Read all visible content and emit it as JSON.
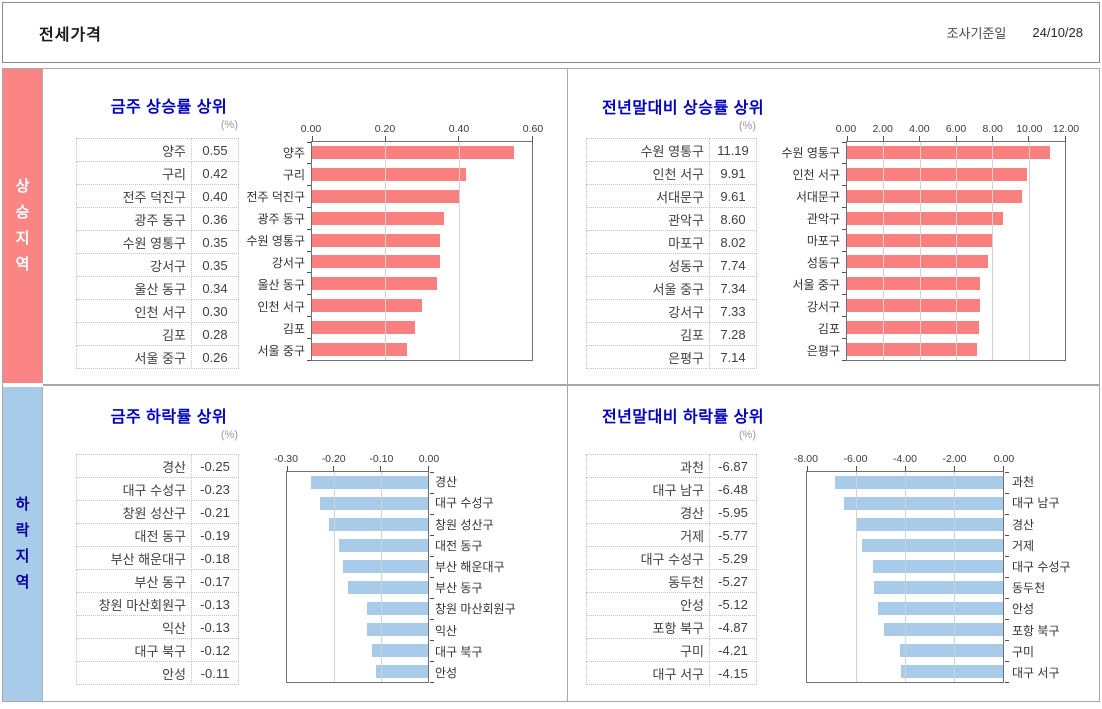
{
  "header": {
    "title": "전세가격",
    "survey_label": "조사기준일",
    "survey_date": "24/10/28"
  },
  "sidebar": {
    "up_label": "상승지역",
    "down_label": "하락지역"
  },
  "colors": {
    "up_bar": "#FA8080",
    "down_bar": "#A9CBEA",
    "up_strip_bg": "#FB8484",
    "down_strip_bg": "#A9CBEA",
    "panel_title": "#0000C0",
    "up_strip_text": "#FFFFFF",
    "down_strip_text": "#000099"
  },
  "chart_data": [
    {
      "id": "week-up",
      "type": "bar",
      "orientation": "horizontal",
      "title": "금주 상승률 상위",
      "unit": "(%)",
      "categories": [
        "양주",
        "구리",
        "전주 덕진구",
        "광주 동구",
        "수원 영통구",
        "강서구",
        "울산 동구",
        "인천 서구",
        "김포",
        "서울 중구"
      ],
      "values": [
        0.55,
        0.42,
        0.4,
        0.36,
        0.35,
        0.35,
        0.34,
        0.3,
        0.28,
        0.26
      ],
      "xlim": [
        0,
        0.6
      ],
      "ticks": [
        "0.00",
        "0.20",
        "0.40",
        "0.60"
      ],
      "bar_color": "#FA8080",
      "labels_side": "left",
      "grid": true
    },
    {
      "id": "ytd-up",
      "type": "bar",
      "orientation": "horizontal",
      "title": "전년말대비 상승률 상위",
      "unit": "(%)",
      "categories": [
        "수원 영통구",
        "인천 서구",
        "서대문구",
        "관악구",
        "마포구",
        "성동구",
        "서울 중구",
        "강서구",
        "김포",
        "은평구"
      ],
      "values": [
        11.19,
        9.91,
        9.61,
        8.6,
        8.02,
        7.74,
        7.34,
        7.33,
        7.28,
        7.14
      ],
      "xlim": [
        0,
        12.0
      ],
      "ticks": [
        "0.00",
        "2.00",
        "4.00",
        "6.00",
        "8.00",
        "10.00",
        "12.00"
      ],
      "bar_color": "#FA8080",
      "labels_side": "left",
      "grid": true
    },
    {
      "id": "week-down",
      "type": "bar",
      "orientation": "horizontal",
      "title": "금주 하락률 상위",
      "unit": "(%)",
      "categories": [
        "경산",
        "대구 수성구",
        "창원 성산구",
        "대전 동구",
        "부산 해운대구",
        "부산 동구",
        "창원 마산회원구",
        "익산",
        "대구 북구",
        "안성"
      ],
      "values": [
        -0.25,
        -0.23,
        -0.21,
        -0.19,
        -0.18,
        -0.17,
        -0.13,
        -0.13,
        -0.12,
        -0.11
      ],
      "xlim": [
        -0.3,
        0
      ],
      "ticks": [
        "-0.30",
        "-0.20",
        "-0.10",
        "0.00"
      ],
      "bar_color": "#A9CBEA",
      "labels_side": "right",
      "grid": true
    },
    {
      "id": "ytd-down",
      "type": "bar",
      "orientation": "horizontal",
      "title": "전년말대비 하락률 상위",
      "unit": "(%)",
      "categories": [
        "과천",
        "대구 남구",
        "경산",
        "거제",
        "대구 수성구",
        "동두천",
        "안성",
        "포항 북구",
        "구미",
        "대구 서구"
      ],
      "values": [
        -6.87,
        -6.48,
        -5.95,
        -5.77,
        -5.29,
        -5.27,
        -5.12,
        -4.87,
        -4.21,
        -4.15
      ],
      "xlim": [
        -8.0,
        0
      ],
      "ticks": [
        "-8.00",
        "-6.00",
        "-4.00",
        "-2.00",
        "0.00"
      ],
      "bar_color": "#A9CBEA",
      "labels_side": "right",
      "grid": true
    }
  ]
}
